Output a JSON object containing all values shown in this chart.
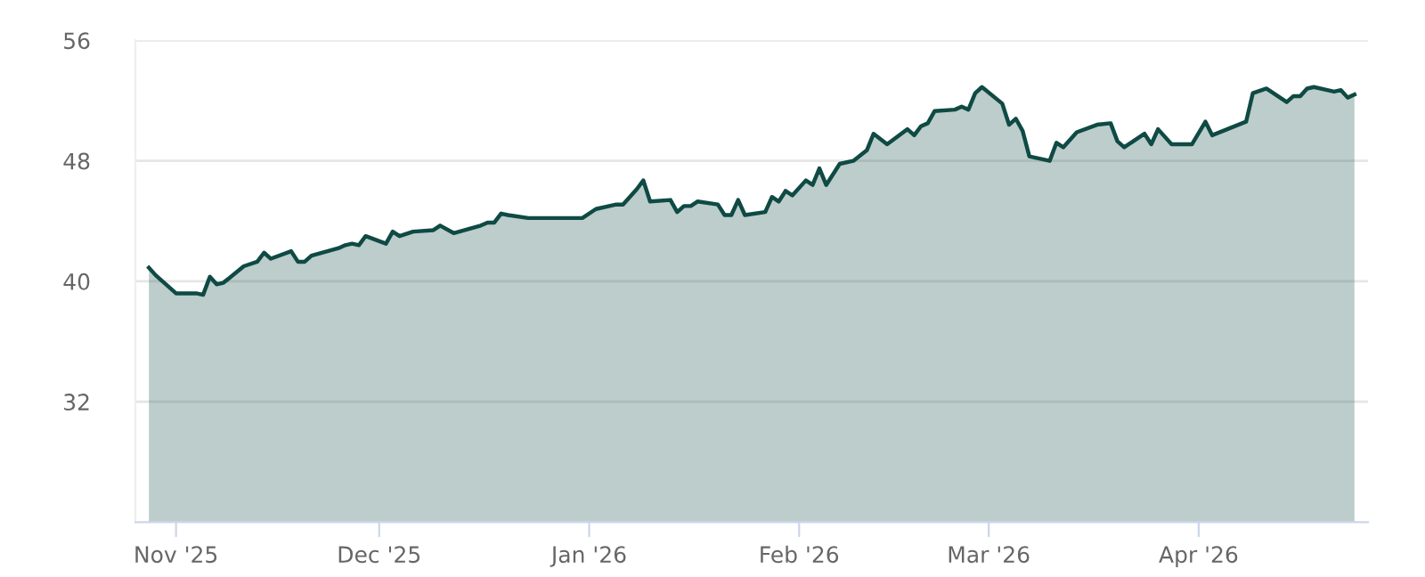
{
  "chart_data": {
    "type": "area",
    "x": [
      "2025-10-28",
      "2025-10-29",
      "2025-10-30",
      "2025-11-01",
      "2025-11-04",
      "2025-11-05",
      "2025-11-06",
      "2025-11-07",
      "2025-11-08",
      "2025-11-11",
      "2025-11-13",
      "2025-11-14",
      "2025-11-15",
      "2025-11-18",
      "2025-11-19",
      "2025-11-20",
      "2025-11-21",
      "2025-11-25",
      "2025-11-26",
      "2025-11-27",
      "2025-11-28",
      "2025-11-29",
      "2025-12-02",
      "2025-12-03",
      "2025-12-04",
      "2025-12-06",
      "2025-12-09",
      "2025-12-10",
      "2025-12-12",
      "2025-12-16",
      "2025-12-17",
      "2025-12-18",
      "2025-12-19",
      "2025-12-20",
      "2025-12-23",
      "2025-12-24",
      "2025-12-31",
      "2026-01-02",
      "2026-01-05",
      "2026-01-06",
      "2026-01-07",
      "2026-01-08",
      "2026-01-09",
      "2026-01-10",
      "2026-01-13",
      "2026-01-14",
      "2026-01-15",
      "2026-01-16",
      "2026-01-17",
      "2026-01-20",
      "2026-01-21",
      "2026-01-22",
      "2026-01-23",
      "2026-01-24",
      "2026-01-27",
      "2026-01-28",
      "2026-01-29",
      "2026-01-30",
      "2026-01-31",
      "2026-02-02",
      "2026-02-03",
      "2026-02-04",
      "2026-02-05",
      "2026-02-07",
      "2026-02-09",
      "2026-02-11",
      "2026-02-12",
      "2026-02-14",
      "2026-02-17",
      "2026-02-18",
      "2026-02-19",
      "2026-02-20",
      "2026-02-21",
      "2026-02-24",
      "2026-02-25",
      "2026-02-26",
      "2026-02-27",
      "2026-02-28",
      "2026-03-03",
      "2026-03-04",
      "2026-03-05",
      "2026-03-06",
      "2026-03-07",
      "2026-03-10",
      "2026-03-11",
      "2026-03-12",
      "2026-03-14",
      "2026-03-17",
      "2026-03-19",
      "2026-03-20",
      "2026-03-21",
      "2026-03-24",
      "2026-03-25",
      "2026-03-26",
      "2026-03-28",
      "2026-03-31",
      "2026-04-02",
      "2026-04-03",
      "2026-04-08",
      "2026-04-09",
      "2026-04-11",
      "2026-04-14",
      "2026-04-15",
      "2026-04-16",
      "2026-04-17",
      "2026-04-18",
      "2026-04-21",
      "2026-04-22",
      "2026-04-23",
      "2026-04-24"
    ],
    "series": [
      {
        "color": "#0f4a44",
        "values": [
          40.9,
          40.4,
          40.0,
          39.2,
          39.2,
          39.1,
          40.3,
          39.8,
          39.9,
          41.0,
          41.3,
          41.9,
          41.5,
          42.0,
          41.3,
          41.3,
          41.7,
          42.2,
          42.4,
          42.5,
          42.4,
          43.0,
          42.5,
          43.3,
          43.0,
          43.3,
          43.4,
          43.7,
          43.2,
          43.7,
          43.9,
          43.9,
          44.5,
          44.4,
          44.2,
          44.2,
          44.2,
          44.8,
          45.1,
          45.1,
          45.6,
          46.1,
          46.7,
          45.3,
          45.4,
          44.6,
          45.0,
          45.0,
          45.3,
          45.1,
          44.4,
          44.4,
          45.4,
          44.4,
          44.6,
          45.6,
          45.3,
          46.0,
          45.7,
          46.7,
          46.4,
          47.5,
          46.4,
          47.8,
          48.0,
          48.7,
          49.8,
          49.1,
          50.1,
          49.7,
          50.3,
          50.5,
          51.3,
          51.4,
          51.6,
          51.4,
          52.5,
          52.9,
          51.8,
          50.4,
          50.8,
          50.0,
          48.3,
          48.0,
          49.2,
          48.9,
          49.9,
          50.4,
          50.5,
          49.3,
          48.9,
          49.8,
          49.1,
          50.1,
          49.1,
          49.1,
          50.6,
          49.7,
          50.6,
          52.5,
          52.8,
          51.9,
          52.3,
          52.3,
          52.8,
          52.9,
          52.6,
          52.7,
          52.2,
          52.4
        ]
      }
    ],
    "xlim": [
      "2025-10-26",
      "2026-04-26"
    ],
    "xticks": [
      {
        "value": "2025-11-01",
        "label": "Nov '25"
      },
      {
        "value": "2025-12-01",
        "label": "Dec '25"
      },
      {
        "value": "2026-01-01",
        "label": "Jan '26"
      },
      {
        "value": "2026-02-01",
        "label": "Feb '26"
      },
      {
        "value": "2026-03-01",
        "label": "Mar '26"
      },
      {
        "value": "2026-04-01",
        "label": "Apr '26"
      }
    ],
    "ylim": [
      24,
      56
    ],
    "yticks": [
      32,
      40,
      48,
      56
    ],
    "grid": "y",
    "legend": false
  }
}
